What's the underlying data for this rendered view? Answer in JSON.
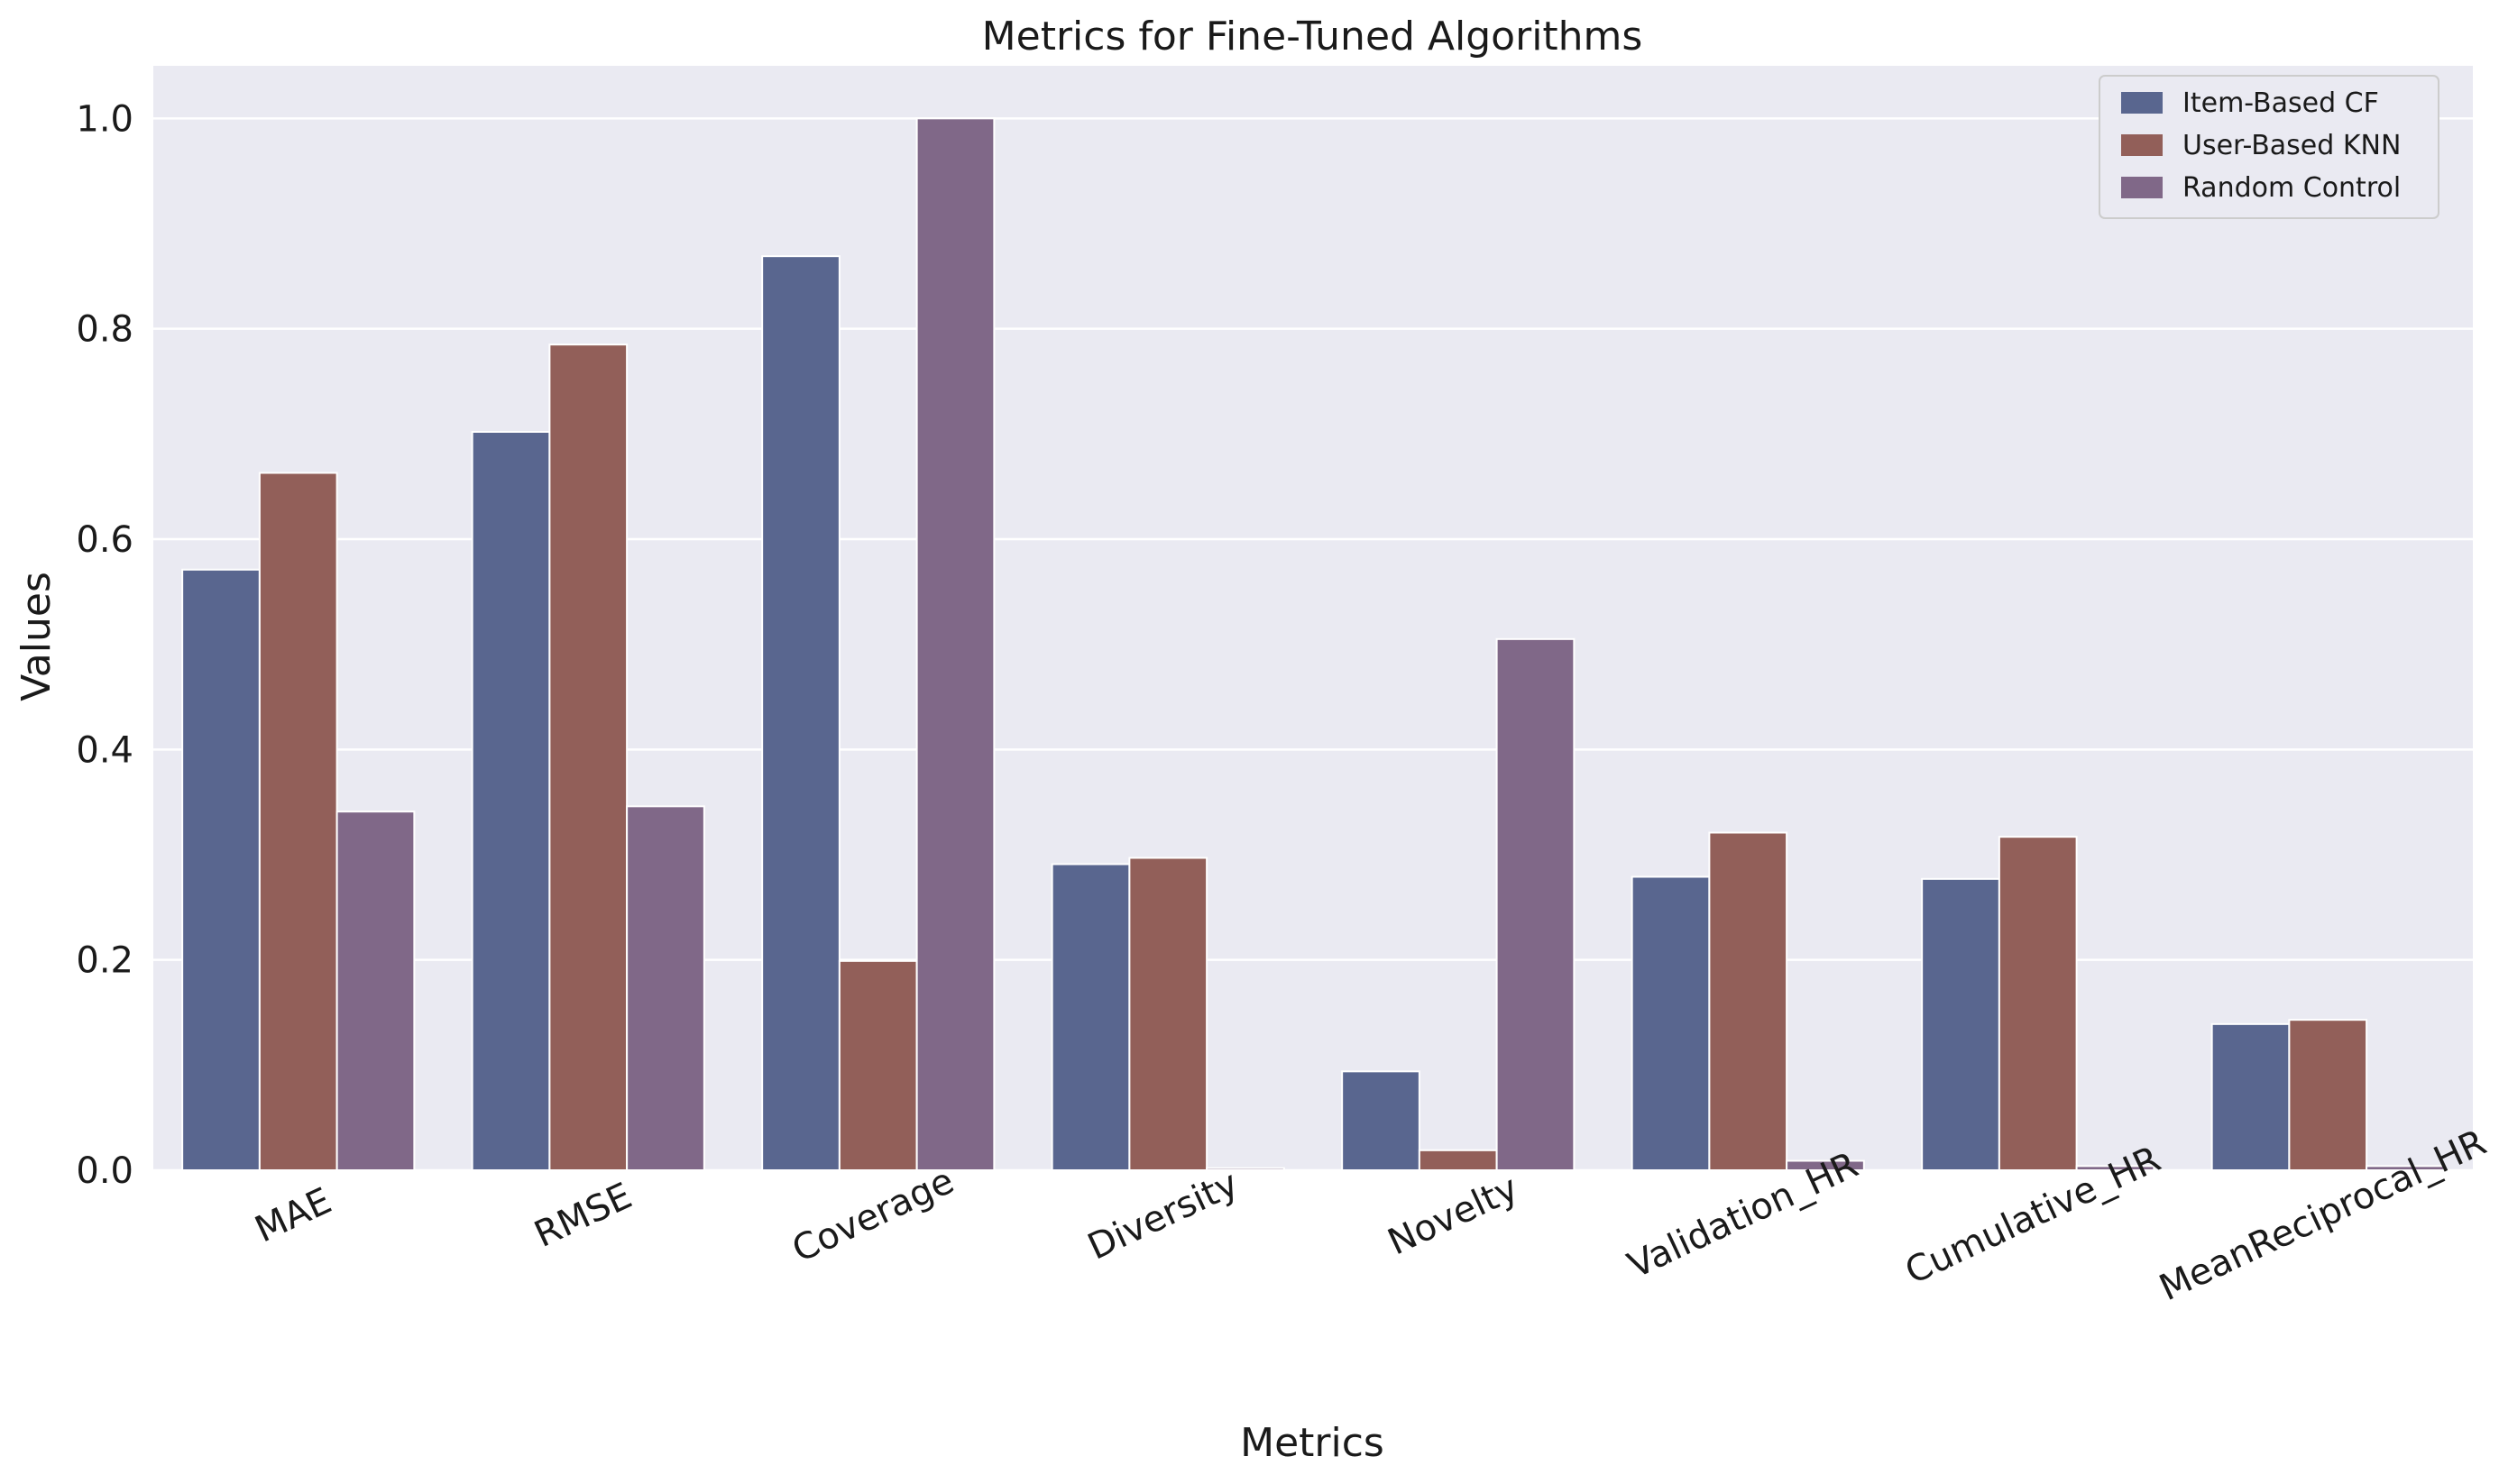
{
  "chart_data": {
    "type": "bar",
    "title": "Metrics for Fine-Tuned Algorithms",
    "xlabel": "Metrics",
    "ylabel": "Values",
    "categories": [
      "MAE",
      "RMSE",
      "Coverage",
      "Diversity",
      "Novelty",
      "Validation_HR",
      "Cumulative_HR",
      "MeanReciprocal_HR"
    ],
    "series": [
      {
        "name": "Item-Based CF",
        "color": "#59668f",
        "values": [
          0.571,
          0.702,
          0.869,
          0.291,
          0.094,
          0.279,
          0.277,
          0.139
        ]
      },
      {
        "name": "User-Based KNN",
        "color": "#925f59",
        "values": [
          0.663,
          0.785,
          0.199,
          0.297,
          0.019,
          0.321,
          0.317,
          0.143
        ]
      },
      {
        "name": "Random Control",
        "color": "#806888",
        "values": [
          0.341,
          0.346,
          1.0,
          0.002,
          0.505,
          0.009,
          0.004,
          0.004
        ]
      }
    ],
    "ylim": [
      0,
      1.05
    ],
    "yticks": [
      "0.0",
      "0.2",
      "0.4",
      "0.6",
      "0.8",
      "1.0"
    ],
    "grid": true,
    "legend": "top-right",
    "plot_background": "#eaeaf2"
  }
}
